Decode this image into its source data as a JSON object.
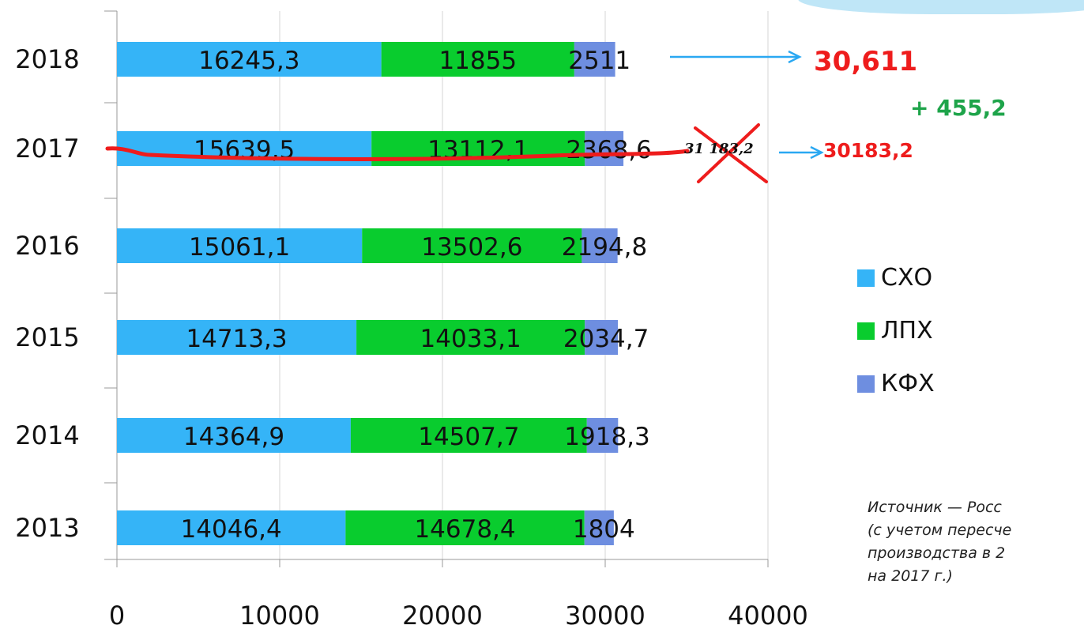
{
  "chart_data": {
    "type": "bar",
    "orientation": "horizontal",
    "stacked": true,
    "categories": [
      "2018",
      "2017",
      "2016",
      "2015",
      "2014",
      "2013"
    ],
    "series": [
      {
        "name": "СХО",
        "color": "#35b4f7",
        "values": [
          16245.3,
          15639.5,
          15061.1,
          14713.3,
          14364.9,
          14046.4
        ],
        "labels": [
          "16245,3",
          "15639,5",
          "15061,1",
          "14713,3",
          "14364,9",
          "14046,4"
        ]
      },
      {
        "name": "ЛПХ",
        "color": "#09cc2e",
        "values": [
          11855,
          13112.1,
          13502.6,
          14033.1,
          14507.7,
          14678.4
        ],
        "labels": [
          "11855",
          "13112,1",
          "13502,6",
          "14033,1",
          "14507,7",
          "14678,4"
        ]
      },
      {
        "name": "КФХ",
        "color": "#6e8ee0",
        "values": [
          2511,
          2368.6,
          2194.8,
          2034.7,
          1918.3,
          1804
        ],
        "labels": [
          "2511",
          "2368,6",
          "2194,8",
          "2034,7",
          "1918,3",
          "1804"
        ]
      }
    ],
    "xlim": [
      0,
      40000
    ],
    "xticks": [
      "0",
      "10000",
      "20000",
      "30000",
      "40000"
    ],
    "xtick_values": [
      0,
      10000,
      20000,
      30000,
      40000
    ],
    "grid": true,
    "legend_position": "right"
  },
  "annotations": {
    "total_2018": "30,611",
    "difference": "+ 455,2",
    "struck_total_2017": "31 183,2",
    "corrected_total_2017": "30183,2",
    "source_line1": "Источник — Росс",
    "source_line2": "(с учетом пересче",
    "source_line3": "производства в 2",
    "source_line4": "на 2017 г.)",
    "total_color": "#ee1c1c",
    "difference_color": "#1ea44a",
    "arrow_color": "#2aa8f2",
    "strike_color": "#ee1c1c"
  },
  "legend": {
    "items": [
      {
        "label": "СХО",
        "color": "#35b4f7"
      },
      {
        "label": "ЛПХ",
        "color": "#09cc2e"
      },
      {
        "label": "КФХ",
        "color": "#6e8ee0"
      }
    ]
  }
}
